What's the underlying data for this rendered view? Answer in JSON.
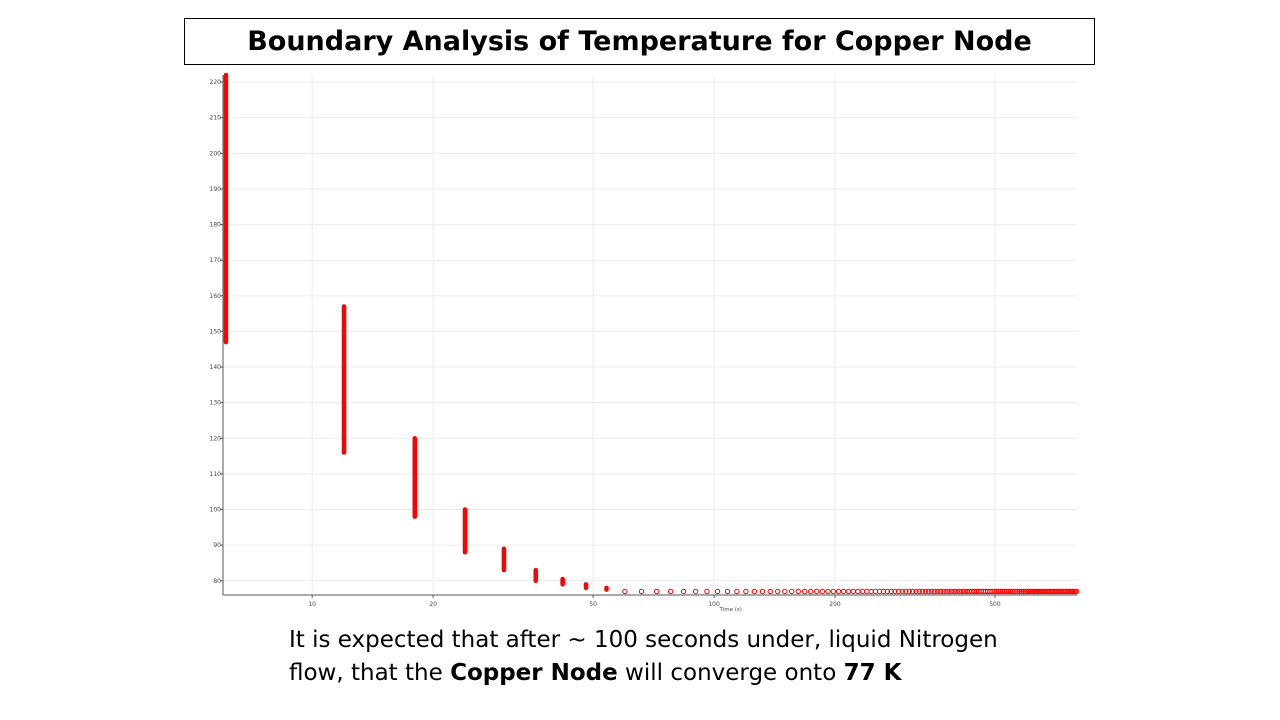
{
  "title": "Boundary Analysis of Temperature for Copper Node",
  "caption": {
    "t1": "It is expected that after ~ 100 seconds under, liquid Nitrogen flow, that the ",
    "b1": "Copper Node",
    "t2": " will converge onto ",
    "b2": "77 K"
  },
  "chart_data": {
    "type": "scatter",
    "title": "",
    "xlabel": "Time (s)",
    "ylabel": "",
    "xscale": "log",
    "xlim": [
      6,
      800
    ],
    "ylim": [
      76,
      222
    ],
    "xticks": [
      10,
      20,
      50,
      100,
      200,
      500
    ],
    "yticks": [
      80,
      90,
      100,
      110,
      120,
      130,
      140,
      150,
      160,
      170,
      180,
      190,
      200,
      210,
      220
    ],
    "grid": true,
    "color": "#ff0000",
    "point_ranges": [
      {
        "x": 6.1,
        "y_min": 147,
        "y_max": 222
      },
      {
        "x": 12,
        "y_min": 116,
        "y_max": 157
      },
      {
        "x": 18,
        "y_min": 98,
        "y_max": 120
      },
      {
        "x": 24,
        "y_min": 88,
        "y_max": 100
      },
      {
        "x": 30,
        "y_min": 83,
        "y_max": 89
      },
      {
        "x": 36,
        "y_min": 80,
        "y_max": 83
      },
      {
        "x": 42,
        "y_min": 79,
        "y_max": 80.5
      },
      {
        "x": 48,
        "y_min": 78,
        "y_max": 79
      },
      {
        "x": 54,
        "y_min": 77.5,
        "y_max": 78
      }
    ],
    "tail": {
      "x_start": 60,
      "x_end": 800,
      "x_step": 6,
      "y": 77
    }
  }
}
